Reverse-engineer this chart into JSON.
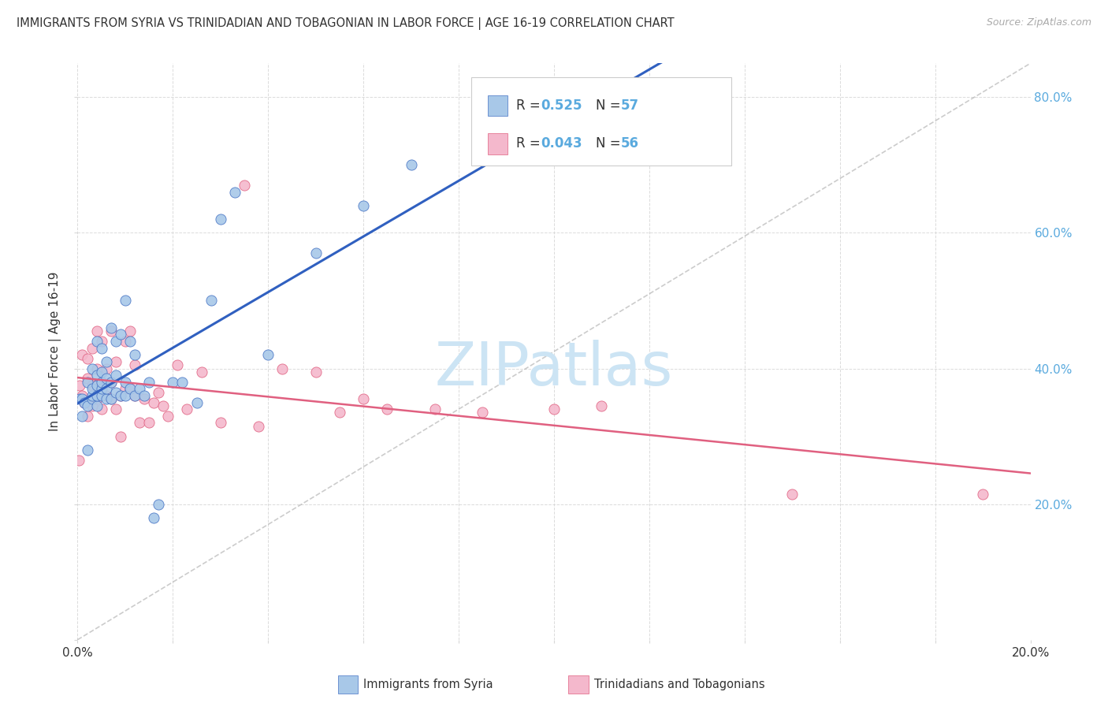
{
  "title": "IMMIGRANTS FROM SYRIA VS TRINIDADIAN AND TOBAGONIAN IN LABOR FORCE | AGE 16-19 CORRELATION CHART",
  "source": "Source: ZipAtlas.com",
  "ylabel": "In Labor Force | Age 16-19",
  "xlim": [
    0.0,
    0.2
  ],
  "ylim": [
    0.0,
    0.85
  ],
  "y_ticks": [
    0.0,
    0.2,
    0.4,
    0.6,
    0.8
  ],
  "color_syria": "#a8c8e8",
  "color_syria_edge": "#4472c4",
  "color_tt": "#f4b8cc",
  "color_tt_edge": "#e06080",
  "color_syria_line": "#3060c0",
  "color_tt_line": "#e06080",
  "color_diag": "#aaaaaa",
  "color_grid": "#d8d8d8",
  "color_right_axis": "#5aaade",
  "color_title": "#333333",
  "color_bg": "#ffffff",
  "color_watermark": "#cce4f4",
  "watermark": "ZIPatlas",
  "legend_r1": "0.525",
  "legend_n1": "57",
  "legend_r2": "0.043",
  "legend_n2": "56",
  "syria_x": [
    0.0005,
    0.001,
    0.001,
    0.0015,
    0.002,
    0.002,
    0.002,
    0.003,
    0.003,
    0.003,
    0.003,
    0.004,
    0.004,
    0.004,
    0.004,
    0.004,
    0.005,
    0.005,
    0.005,
    0.005,
    0.005,
    0.006,
    0.006,
    0.006,
    0.006,
    0.007,
    0.007,
    0.007,
    0.008,
    0.008,
    0.008,
    0.009,
    0.009,
    0.01,
    0.01,
    0.01,
    0.011,
    0.011,
    0.012,
    0.012,
    0.013,
    0.014,
    0.015,
    0.016,
    0.017,
    0.02,
    0.022,
    0.025,
    0.028,
    0.03,
    0.033,
    0.04,
    0.05,
    0.06,
    0.07,
    0.095,
    0.13
  ],
  "syria_y": [
    0.355,
    0.33,
    0.355,
    0.35,
    0.28,
    0.345,
    0.38,
    0.355,
    0.36,
    0.37,
    0.4,
    0.345,
    0.36,
    0.375,
    0.39,
    0.44,
    0.36,
    0.37,
    0.38,
    0.395,
    0.43,
    0.355,
    0.37,
    0.385,
    0.41,
    0.355,
    0.38,
    0.46,
    0.365,
    0.39,
    0.44,
    0.36,
    0.45,
    0.36,
    0.38,
    0.5,
    0.37,
    0.44,
    0.36,
    0.42,
    0.37,
    0.36,
    0.38,
    0.18,
    0.2,
    0.38,
    0.38,
    0.35,
    0.5,
    0.62,
    0.66,
    0.42,
    0.57,
    0.64,
    0.7,
    0.8,
    0.8
  ],
  "tt_x": [
    0.0003,
    0.0005,
    0.001,
    0.001,
    0.0015,
    0.002,
    0.002,
    0.002,
    0.003,
    0.003,
    0.003,
    0.004,
    0.004,
    0.004,
    0.005,
    0.005,
    0.005,
    0.006,
    0.006,
    0.007,
    0.007,
    0.007,
    0.008,
    0.008,
    0.009,
    0.009,
    0.01,
    0.01,
    0.011,
    0.011,
    0.012,
    0.012,
    0.013,
    0.014,
    0.015,
    0.016,
    0.017,
    0.018,
    0.019,
    0.021,
    0.023,
    0.026,
    0.03,
    0.035,
    0.038,
    0.043,
    0.05,
    0.055,
    0.06,
    0.065,
    0.075,
    0.085,
    0.1,
    0.11,
    0.15,
    0.19
  ],
  "tt_y": [
    0.265,
    0.375,
    0.36,
    0.42,
    0.35,
    0.33,
    0.385,
    0.415,
    0.345,
    0.375,
    0.43,
    0.355,
    0.4,
    0.455,
    0.34,
    0.38,
    0.44,
    0.36,
    0.4,
    0.355,
    0.38,
    0.455,
    0.34,
    0.41,
    0.3,
    0.36,
    0.37,
    0.44,
    0.37,
    0.455,
    0.36,
    0.405,
    0.32,
    0.355,
    0.32,
    0.35,
    0.365,
    0.345,
    0.33,
    0.405,
    0.34,
    0.395,
    0.32,
    0.67,
    0.315,
    0.4,
    0.395,
    0.335,
    0.355,
    0.34,
    0.34,
    0.335,
    0.34,
    0.345,
    0.215,
    0.215
  ]
}
